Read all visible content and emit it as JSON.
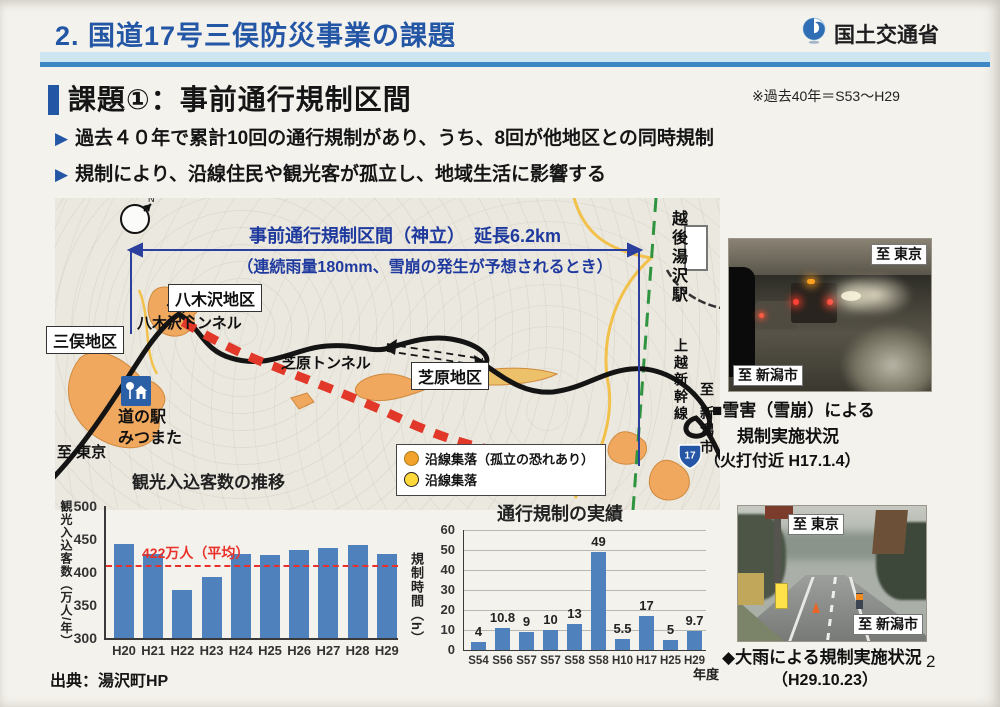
{
  "page": {
    "page_number": "2",
    "source": "出典：湯沢町HP"
  },
  "header": {
    "title": "2. 国道17号三俣防災事業の課題",
    "agency": "国土交通省",
    "accent_color": "#2456a6"
  },
  "section": {
    "heading": "課題①：事前通行規制区間",
    "note": "※過去40年＝S53～H29",
    "bullet1": "過去４０年で累計10回の通行規制があり、うち、8回が他地区との同時規制",
    "bullet2": "規制により、沿線住民や観光客が孤立し、地域生活に影響する"
  },
  "map": {
    "regulation_title": "事前通行規制区間（神立）　延長6.2km",
    "regulation_condition": "（連続雨量180mm、雪崩の発生が予想されるとき）",
    "district_mitsumata": "三俣地区",
    "district_yagisawa": "八木沢地区",
    "tunnel_yagisawa": "八木沢トンネル",
    "tunnel_shibahara": "芝原トンネル",
    "district_shibahara": "芝原地区",
    "roadside_station_line1": "道の駅",
    "roadside_station_line2": "みつまた",
    "to_tokyo": "至 東京",
    "station_echigo_yuzawa": "越後湯沢駅",
    "shinkansen": "上越新幹線",
    "to_niigata": "至 新潟市",
    "route_number": "17",
    "compass": "N",
    "legend": {
      "item1": "沿線集落（孤立の恐れあり）",
      "item2": "沿線集落"
    }
  },
  "photo_snow": {
    "label_tokyo": "至 東京",
    "label_niigata": "至 新潟市",
    "caption_line1": "■雪害（雪崩）による",
    "caption_line2": "規制実施状況",
    "caption_line3": "（火打付近 H17.1.4）"
  },
  "photo_rain": {
    "label_tokyo": "至 東京",
    "label_niigata": "至 新潟市",
    "caption_line1": "◆大雨による規制実施状況",
    "caption_line2": "（H29.10.23）"
  },
  "chart_data": [
    {
      "id": "tourist-visitors",
      "type": "bar",
      "title": "観光入込客数の推移",
      "ylabel": "観光入込客数（万人/年）",
      "xlabel": "",
      "categories": [
        "H20",
        "H21",
        "H22",
        "H23",
        "H24",
        "H25",
        "H26",
        "H27",
        "H28",
        "H29"
      ],
      "values": [
        443,
        428,
        373,
        393,
        427,
        426,
        434,
        436,
        441,
        427
      ],
      "ylim": [
        300,
        500
      ],
      "yticks": [
        300,
        350,
        400,
        450,
        500
      ],
      "bar_color": "#4f81bd",
      "grid": false,
      "average_line": {
        "label": "422万人（平均）",
        "value": 422,
        "display_value": 410,
        "color": "#e8312a"
      }
    },
    {
      "id": "traffic-regulation",
      "type": "bar",
      "title": "通行規制の実績",
      "ylabel": "規制時間（h）",
      "xlabel": "年度",
      "categories": [
        "S54",
        "S56",
        "S57",
        "S57",
        "S58",
        "S58",
        "H10",
        "H17",
        "H25",
        "H29"
      ],
      "values": [
        4,
        10.8,
        9,
        10,
        13,
        49,
        5.5,
        17,
        5,
        9.7
      ],
      "ylim": [
        0,
        60
      ],
      "yticks": [
        0,
        10,
        20,
        30,
        40,
        50,
        60
      ],
      "bar_color": "#4f81bd",
      "grid": true,
      "value_labels": true
    }
  ]
}
